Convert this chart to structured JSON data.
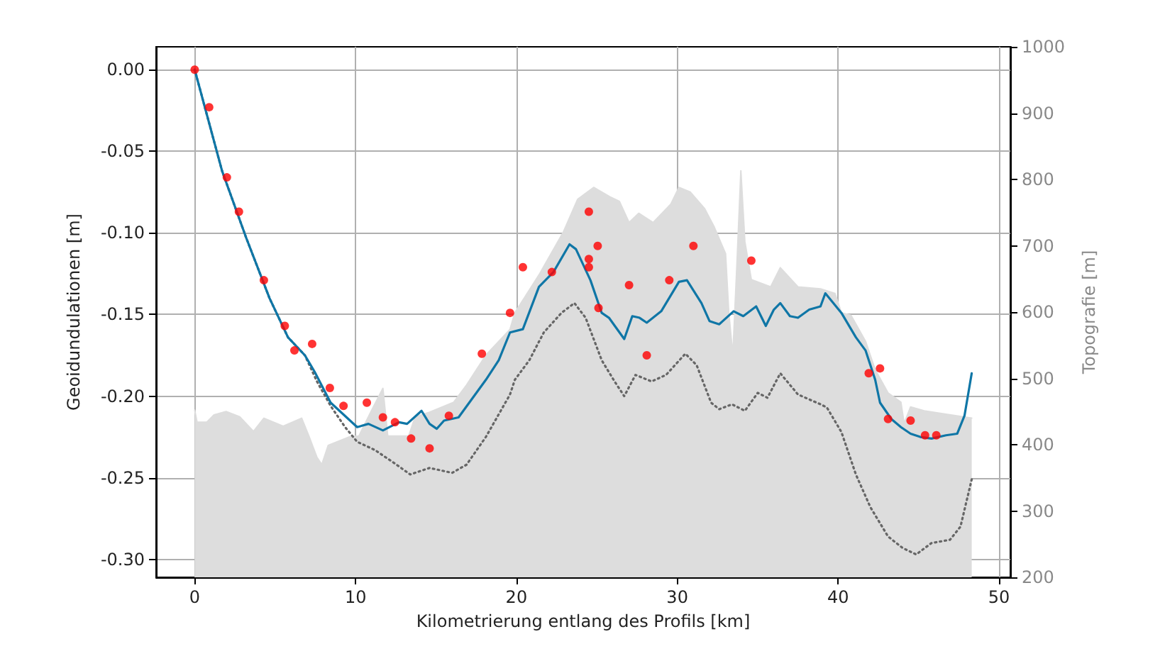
{
  "chart_data": {
    "type": "line",
    "xlabel": "Kilometrierung entlang des Profils [km]",
    "ylabel": "Geoidundulationen [m]",
    "y2label": "Topografie [m]",
    "xlim": [
      -2.4,
      50.7
    ],
    "xticks": [
      0,
      10,
      20,
      30,
      40,
      50
    ],
    "ylim": [
      -0.311,
      0.014
    ],
    "yticks": [
      {
        "value": -0.3,
        "label": "-0.30"
      },
      {
        "value": -0.25,
        "label": "-0.25"
      },
      {
        "value": -0.2,
        "label": "-0.20"
      },
      {
        "value": -0.15,
        "label": "-0.15"
      },
      {
        "value": -0.1,
        "label": "-0.10"
      },
      {
        "value": -0.05,
        "label": "-0.05"
      },
      {
        "value": 0,
        "label": "0.00"
      }
    ],
    "y2lim": [
      200,
      1000
    ],
    "y2ticks": [
      200,
      300,
      400,
      500,
      600,
      700,
      800,
      900,
      1000
    ],
    "grid": true,
    "series": [
      {
        "type": "area",
        "axis": "y2",
        "color": "#dddddd",
        "x": [
          0,
          0.15,
          0.75,
          1.2,
          1.95,
          2.8,
          3.65,
          4.3,
          5.5,
          6.65,
          7.1,
          7.6,
          7.9,
          8.3,
          9.65,
          10.2,
          11.0,
          11.7,
          12.0,
          13.3,
          13.7,
          14.6,
          16.1,
          16.9,
          18.1,
          19.6,
          19.9,
          21.4,
          22.9,
          23.8,
          24.8,
          25.8,
          26.4,
          27.0,
          27.6,
          28.5,
          29.6,
          30.1,
          30.8,
          31.7,
          32.3,
          33.0,
          33.2,
          33.45,
          33.7,
          33.95,
          34.2,
          34.6,
          35.8,
          36.4,
          37.5,
          38.9,
          39.8,
          40.2,
          40.8,
          41.7,
          42.3,
          43.1,
          43.9,
          44.1,
          44.5,
          45.35,
          46.7,
          48.3
        ],
        "values": [
          452,
          434,
          434,
          445,
          450,
          442,
          420,
          440,
          428,
          440,
          413,
          381,
          370,
          399,
          412,
          413,
          452,
          485,
          413,
          413,
          442,
          449,
          464,
          490,
          535,
          574,
          599,
          656,
          720,
          770,
          788,
          774,
          767,
          735,
          749,
          735,
          763,
          788,
          781,
          756,
          728,
          688,
          599,
          535,
          670,
          813,
          706,
          649,
          638,
          667,
          638,
          635,
          628,
          599,
          595,
          556,
          513,
          478,
          464,
          432,
          457,
          451,
          446,
          440
        ]
      },
      {
        "color": "#666666",
        "line_style": "dotted",
        "x": [
          0,
          1.7,
          3.2,
          4.65,
          5.8,
          6.85,
          7.6,
          8.45,
          9.35,
          10.1,
          11.2,
          12.4,
          13.4,
          14.6,
          16.0,
          16.9,
          18.1,
          19.6,
          19.9,
          20.8,
          21.7,
          22.8,
          23.6,
          24.3,
          25.3,
          26.1,
          26.7,
          27.4,
          28.4,
          29.3,
          30.5,
          31.2,
          32.1,
          32.6,
          33.4,
          34.2,
          35.0,
          35.6,
          36.4,
          37.5,
          38.9,
          39.3,
          40.2,
          41.1,
          42.0,
          43.1,
          44.0,
          44.85,
          45.8,
          46.95,
          47.6,
          48.3
        ],
        "values": [
          0,
          -0.062,
          -0.103,
          -0.14,
          -0.164,
          -0.175,
          -0.191,
          -0.206,
          -0.219,
          -0.228,
          -0.233,
          -0.241,
          -0.248,
          -0.244,
          -0.247,
          -0.242,
          -0.225,
          -0.199,
          -0.19,
          -0.178,
          -0.161,
          -0.149,
          -0.143,
          -0.152,
          -0.178,
          -0.191,
          -0.2,
          -0.187,
          -0.191,
          -0.187,
          -0.174,
          -0.181,
          -0.204,
          -0.208,
          -0.205,
          -0.209,
          -0.198,
          -0.201,
          -0.186,
          -0.199,
          -0.205,
          -0.207,
          -0.222,
          -0.248,
          -0.268,
          -0.286,
          -0.293,
          -0.297,
          -0.29,
          -0.288,
          -0.28,
          -0.251
        ]
      },
      {
        "color": "#0f76a6",
        "line_style": "solid",
        "x": [
          0,
          1.7,
          3.2,
          4.65,
          5.8,
          6.85,
          7.45,
          8.45,
          10.1,
          10.8,
          11.7,
          12.7,
          13.2,
          14.1,
          14.6,
          15.05,
          15.5,
          16.4,
          18.1,
          18.9,
          19.6,
          20.4,
          21.4,
          22.3,
          23.3,
          23.7,
          24.6,
          25.3,
          25.75,
          26.7,
          27.2,
          27.65,
          28.1,
          29.0,
          30.1,
          30.6,
          31.5,
          32.0,
          32.6,
          33.5,
          34.1,
          34.9,
          35.5,
          36.0,
          36.4,
          37.0,
          37.5,
          38.2,
          38.9,
          39.2,
          40.2,
          41.1,
          41.7,
          42.3,
          42.6,
          43.3,
          43.9,
          44.5,
          45.1,
          45.8,
          46.7,
          47.4,
          47.85,
          48.3
        ],
        "values": [
          0,
          -0.062,
          -0.103,
          -0.14,
          -0.164,
          -0.175,
          -0.185,
          -0.204,
          -0.219,
          -0.217,
          -0.221,
          -0.216,
          -0.217,
          -0.209,
          -0.217,
          -0.22,
          -0.215,
          -0.213,
          -0.19,
          -0.178,
          -0.161,
          -0.159,
          -0.133,
          -0.124,
          -0.107,
          -0.11,
          -0.129,
          -0.149,
          -0.152,
          -0.165,
          -0.151,
          -0.152,
          -0.155,
          -0.148,
          -0.13,
          -0.129,
          -0.143,
          -0.154,
          -0.156,
          -0.148,
          -0.151,
          -0.145,
          -0.157,
          -0.147,
          -0.143,
          -0.151,
          -0.152,
          -0.147,
          -0.145,
          -0.137,
          -0.149,
          -0.164,
          -0.172,
          -0.19,
          -0.204,
          -0.214,
          -0.219,
          -0.223,
          -0.225,
          -0.226,
          -0.224,
          -0.223,
          -0.212,
          -0.186
        ]
      },
      {
        "type": "scatter",
        "color": "#ff0000",
        "marker": "circle",
        "x": [
          0,
          0.9,
          2.0,
          2.75,
          4.3,
          5.6,
          6.2,
          7.3,
          8.4,
          9.25,
          10.7,
          11.7,
          12.45,
          13.45,
          14.6,
          15.8,
          17.85,
          19.6,
          20.4,
          22.2,
          24.5,
          25.05,
          24.5,
          24.5,
          25.1,
          27.0,
          28.1,
          29.5,
          31.0,
          34.6,
          41.9,
          42.6,
          43.1,
          44.5,
          45.4,
          46.1
        ],
        "values": [
          0,
          -0.023,
          -0.066,
          -0.087,
          -0.129,
          -0.157,
          -0.172,
          -0.168,
          -0.195,
          -0.206,
          -0.204,
          -0.213,
          -0.216,
          -0.226,
          -0.232,
          -0.212,
          -0.174,
          -0.149,
          -0.121,
          -0.124,
          -0.087,
          -0.108,
          -0.116,
          -0.121,
          -0.146,
          -0.132,
          -0.175,
          -0.129,
          -0.108,
          -0.117,
          -0.186,
          -0.183,
          -0.214,
          -0.215,
          -0.224,
          -0.224
        ]
      }
    ]
  }
}
